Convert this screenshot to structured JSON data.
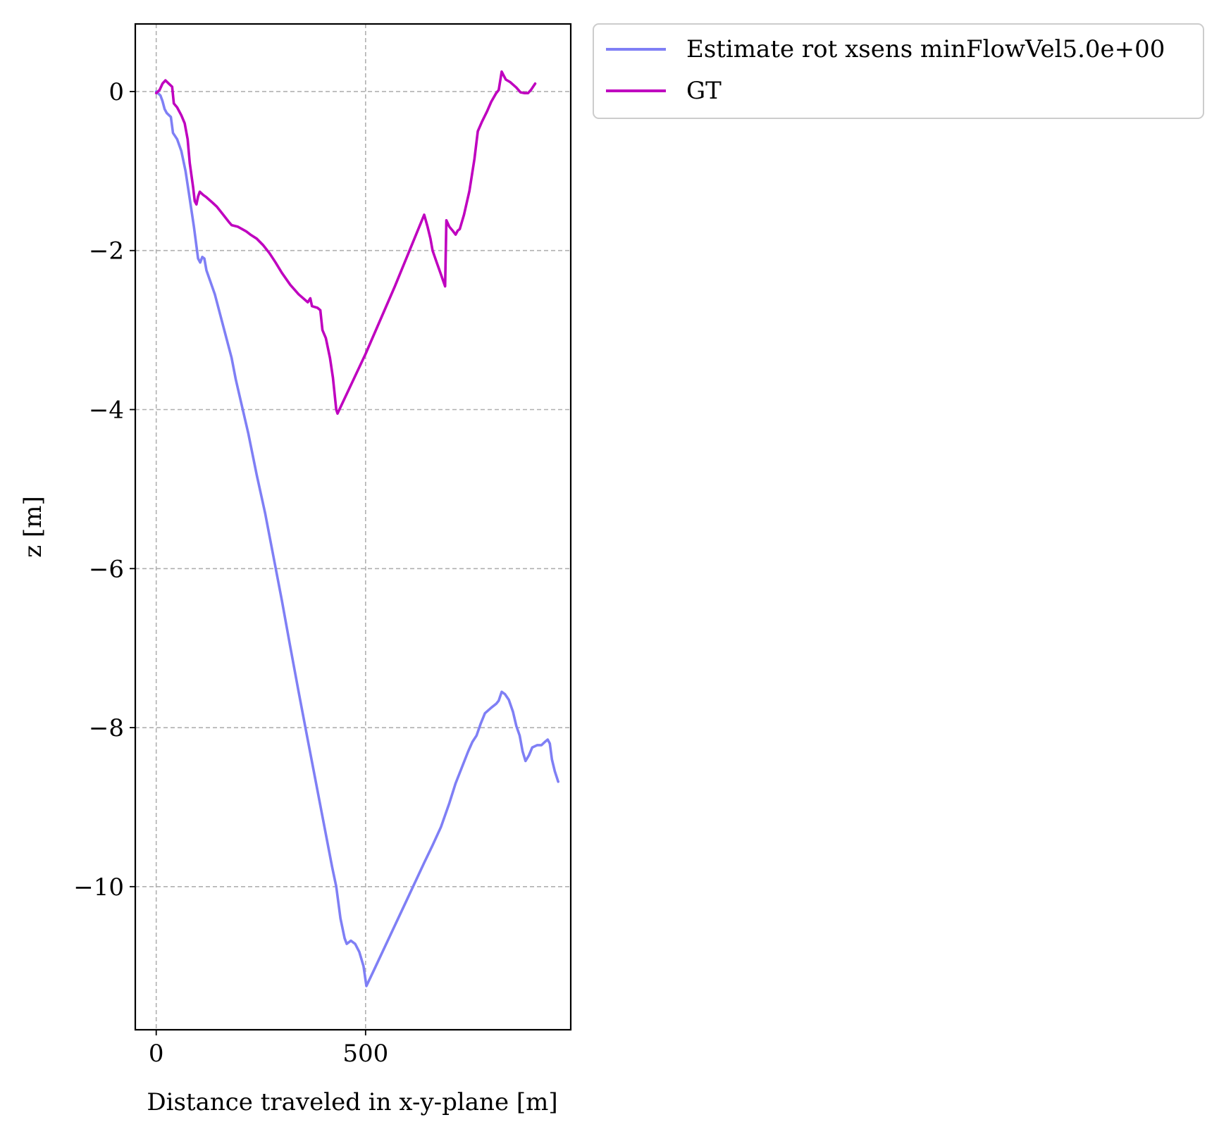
{
  "chart_data": {
    "type": "line",
    "title": "",
    "xlabel": "Distance traveled in x-y-plane [m]",
    "ylabel": "z [m]",
    "xlim": [
      -50,
      990
    ],
    "ylim": [
      -11.8,
      0.85
    ],
    "xticks": [
      0,
      500
    ],
    "xtick_labels": [
      "0",
      "500"
    ],
    "yticks": [
      0,
      -2,
      -4,
      -6,
      -8,
      -10
    ],
    "ytick_labels": [
      "0",
      "−2",
      "−4",
      "−6",
      "−8",
      "−10"
    ],
    "grid": true,
    "legend_placement": "outside-top-right",
    "series": [
      {
        "name": "Estimate rot xsens minFlowVel5.0e+00",
        "color": "#7f7ff5",
        "points": [
          [
            0,
            0.0
          ],
          [
            10,
            -0.05
          ],
          [
            15,
            -0.12
          ],
          [
            20,
            -0.22
          ],
          [
            25,
            -0.27
          ],
          [
            35,
            -0.32
          ],
          [
            40,
            -0.52
          ],
          [
            50,
            -0.6
          ],
          [
            60,
            -0.75
          ],
          [
            70,
            -1.0
          ],
          [
            80,
            -1.35
          ],
          [
            90,
            -1.7
          ],
          [
            100,
            -2.1
          ],
          [
            105,
            -2.15
          ],
          [
            110,
            -2.08
          ],
          [
            115,
            -2.1
          ],
          [
            120,
            -2.25
          ],
          [
            140,
            -2.55
          ],
          [
            160,
            -2.95
          ],
          [
            180,
            -3.35
          ],
          [
            190,
            -3.62
          ],
          [
            200,
            -3.85
          ],
          [
            220,
            -4.3
          ],
          [
            240,
            -4.82
          ],
          [
            260,
            -5.3
          ],
          [
            280,
            -5.85
          ],
          [
            300,
            -6.4
          ],
          [
            320,
            -6.98
          ],
          [
            340,
            -7.55
          ],
          [
            360,
            -8.1
          ],
          [
            380,
            -8.65
          ],
          [
            400,
            -9.2
          ],
          [
            420,
            -9.75
          ],
          [
            430,
            -10.0
          ],
          [
            440,
            -10.4
          ],
          [
            450,
            -10.65
          ],
          [
            455,
            -10.72
          ],
          [
            465,
            -10.68
          ],
          [
            475,
            -10.72
          ],
          [
            485,
            -10.82
          ],
          [
            495,
            -11.0
          ],
          [
            502,
            -11.25
          ],
          [
            520,
            -11.05
          ],
          [
            560,
            -10.6
          ],
          [
            600,
            -10.15
          ],
          [
            640,
            -9.7
          ],
          [
            660,
            -9.48
          ],
          [
            680,
            -9.25
          ],
          [
            700,
            -8.95
          ],
          [
            715,
            -8.7
          ],
          [
            730,
            -8.5
          ],
          [
            745,
            -8.3
          ],
          [
            755,
            -8.18
          ],
          [
            765,
            -8.1
          ],
          [
            775,
            -7.95
          ],
          [
            785,
            -7.82
          ],
          [
            800,
            -7.75
          ],
          [
            812,
            -7.7
          ],
          [
            818,
            -7.66
          ],
          [
            825,
            -7.55
          ],
          [
            833,
            -7.58
          ],
          [
            842,
            -7.65
          ],
          [
            852,
            -7.8
          ],
          [
            860,
            -7.98
          ],
          [
            868,
            -8.1
          ],
          [
            875,
            -8.3
          ],
          [
            882,
            -8.42
          ],
          [
            890,
            -8.35
          ],
          [
            898,
            -8.25
          ],
          [
            910,
            -8.22
          ],
          [
            920,
            -8.22
          ],
          [
            928,
            -8.18
          ],
          [
            935,
            -8.15
          ],
          [
            940,
            -8.2
          ],
          [
            945,
            -8.4
          ],
          [
            952,
            -8.55
          ],
          [
            960,
            -8.68
          ]
        ]
      },
      {
        "name": "GT",
        "color": "#bf00bf",
        "points": [
          [
            0,
            -0.02
          ],
          [
            8,
            0.02
          ],
          [
            15,
            0.1
          ],
          [
            22,
            0.14
          ],
          [
            30,
            0.1
          ],
          [
            38,
            0.06
          ],
          [
            42,
            -0.15
          ],
          [
            50,
            -0.2
          ],
          [
            60,
            -0.3
          ],
          [
            68,
            -0.4
          ],
          [
            75,
            -0.6
          ],
          [
            80,
            -0.9
          ],
          [
            88,
            -1.2
          ],
          [
            92,
            -1.38
          ],
          [
            96,
            -1.42
          ],
          [
            100,
            -1.32
          ],
          [
            104,
            -1.26
          ],
          [
            112,
            -1.3
          ],
          [
            120,
            -1.33
          ],
          [
            135,
            -1.4
          ],
          [
            145,
            -1.45
          ],
          [
            160,
            -1.55
          ],
          [
            175,
            -1.65
          ],
          [
            180,
            -1.68
          ],
          [
            195,
            -1.7
          ],
          [
            205,
            -1.73
          ],
          [
            215,
            -1.76
          ],
          [
            225,
            -1.8
          ],
          [
            240,
            -1.85
          ],
          [
            255,
            -1.93
          ],
          [
            270,
            -2.03
          ],
          [
            285,
            -2.15
          ],
          [
            300,
            -2.28
          ],
          [
            320,
            -2.43
          ],
          [
            340,
            -2.55
          ],
          [
            362,
            -2.65
          ],
          [
            368,
            -2.6
          ],
          [
            372,
            -2.7
          ],
          [
            385,
            -2.72
          ],
          [
            392,
            -2.75
          ],
          [
            397,
            -3.0
          ],
          [
            405,
            -3.1
          ],
          [
            415,
            -3.35
          ],
          [
            422,
            -3.6
          ],
          [
            430,
            -4.0
          ],
          [
            433,
            -4.05
          ],
          [
            500,
            -3.3
          ],
          [
            570,
            -2.45
          ],
          [
            640,
            -1.55
          ],
          [
            648,
            -1.7
          ],
          [
            655,
            -1.85
          ],
          [
            660,
            -2.0
          ],
          [
            670,
            -2.15
          ],
          [
            680,
            -2.3
          ],
          [
            688,
            -2.42
          ],
          [
            690,
            -2.45
          ],
          [
            693,
            -1.62
          ],
          [
            700,
            -1.7
          ],
          [
            708,
            -1.75
          ],
          [
            715,
            -1.8
          ],
          [
            720,
            -1.75
          ],
          [
            725,
            -1.73
          ],
          [
            735,
            -1.55
          ],
          [
            748,
            -1.25
          ],
          [
            760,
            -0.85
          ],
          [
            768,
            -0.5
          ],
          [
            778,
            -0.38
          ],
          [
            790,
            -0.25
          ],
          [
            800,
            -0.13
          ],
          [
            812,
            -0.02
          ],
          [
            818,
            0.02
          ],
          [
            825,
            0.25
          ],
          [
            830,
            0.2
          ],
          [
            835,
            0.15
          ],
          [
            845,
            0.12
          ],
          [
            860,
            0.05
          ],
          [
            870,
            -0.01
          ],
          [
            880,
            -0.02
          ],
          [
            888,
            -0.02
          ],
          [
            895,
            0.02
          ],
          [
            905,
            0.1
          ]
        ]
      }
    ]
  }
}
